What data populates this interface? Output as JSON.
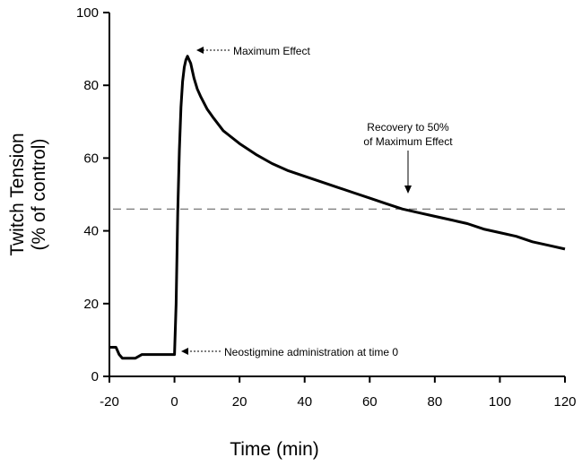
{
  "chart_data": {
    "type": "line",
    "title": "",
    "xlabel": "Time (min)",
    "ylabel_line1": "Twitch Tension",
    "ylabel_line2": "(% of control)",
    "xlim": [
      -20,
      120
    ],
    "ylim": [
      0,
      100
    ],
    "x_ticks": [
      -20,
      0,
      20,
      40,
      60,
      80,
      100,
      120
    ],
    "y_ticks": [
      0,
      20,
      40,
      60,
      80,
      100
    ],
    "grid": false,
    "reference_line": {
      "y": 46,
      "style": "dashed"
    },
    "series": [
      {
        "x": [
          -20,
          -18,
          -17,
          -16,
          -14,
          -12,
          -10,
          -8,
          -6,
          -4,
          -2,
          0,
          0.5,
          1,
          1.5,
          2,
          2.5,
          3,
          3.5,
          4,
          4.5,
          5,
          5.5,
          6,
          7,
          8,
          10,
          12,
          15,
          20,
          25,
          30,
          35,
          40,
          45,
          50,
          55,
          60,
          65,
          70,
          75,
          80,
          85,
          90,
          95,
          100,
          105,
          110,
          115,
          120
        ],
        "y": [
          8,
          8,
          6,
          5,
          5,
          5,
          6,
          6,
          6,
          6,
          6,
          6,
          20,
          45,
          62,
          74,
          81,
          85,
          87,
          88,
          87,
          86,
          84,
          82,
          79,
          77,
          73.5,
          71,
          67.5,
          64,
          61,
          58.5,
          56.5,
          55,
          53.5,
          52,
          50.5,
          49,
          47.5,
          46,
          45,
          44,
          43,
          42,
          40.5,
          39.5,
          38.5,
          37,
          36,
          35
        ]
      }
    ],
    "annotations": {
      "max_effect": "Maximum Effect",
      "recovery_line1": "Recovery to 50%",
      "recovery_line2": "of Maximum Effect",
      "administration": "Neostigmine administration at time 0"
    }
  }
}
